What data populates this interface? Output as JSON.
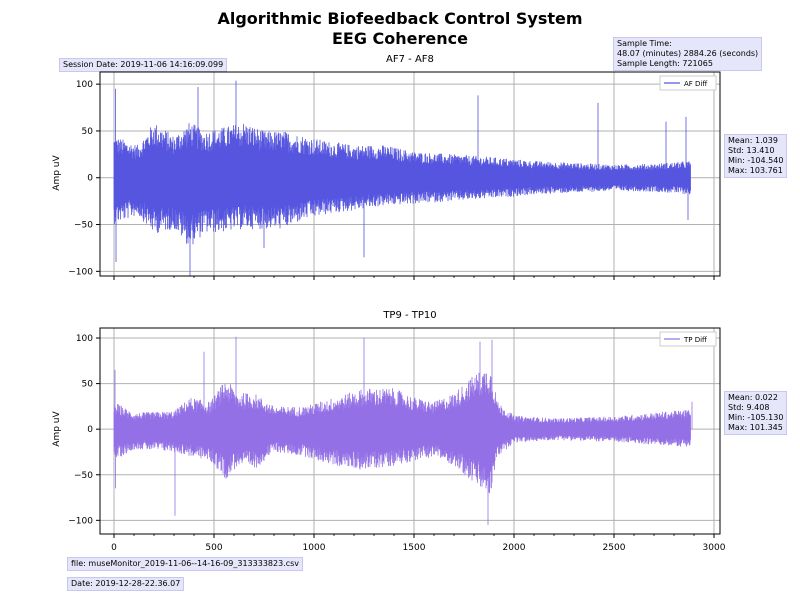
{
  "header": {
    "title_line1": "Algorithmic Biofeedback Control System",
    "title_line2": "EEG Coherence"
  },
  "session_date": "Session Date: 2019-11-06 14:16:09.099",
  "sample_info": {
    "line1": "Sample Time:",
    "line2": "48.07 (minutes) 2884.26 (seconds)",
    "line3": "Sample Length: 721065"
  },
  "footer": {
    "file": "file: museMonitor_2019-11-06--14-16-09_313333823.csv",
    "date": "Date: 2019-12-28-22.36.07"
  },
  "colors": {
    "af": "#5555e0",
    "tp": "#9370e6",
    "grid": "#b0b0b0",
    "box": "#e6e6fa"
  },
  "chart_data": [
    {
      "type": "line",
      "title": "AF7 - AF8",
      "ylabel": "Amp uV",
      "xlabel": "",
      "xlim": [
        -70,
        3030
      ],
      "ylim": [
        -105,
        113
      ],
      "xticks": [
        0,
        500,
        1000,
        1500,
        2000,
        2500,
        3000
      ],
      "yticks": [
        100,
        50,
        0,
        -50,
        -100
      ],
      "show_xtick_labels": false,
      "grid": true,
      "legend": "top-right",
      "series": [
        {
          "name": "AF Diff",
          "x_range": [
            0,
            2884
          ],
          "envelope": [
            [
              0,
              45,
              -50
            ],
            [
              60,
              40,
              -45
            ],
            [
              120,
              35,
              -40
            ],
            [
              200,
              60,
              -60
            ],
            [
              300,
              45,
              -55
            ],
            [
              380,
              60,
              -75
            ],
            [
              450,
              50,
              -60
            ],
            [
              560,
              55,
              -58
            ],
            [
              650,
              60,
              -55
            ],
            [
              750,
              50,
              -55
            ],
            [
              850,
              50,
              -55
            ],
            [
              950,
              45,
              -45
            ],
            [
              1050,
              40,
              -40
            ],
            [
              1200,
              35,
              -35
            ],
            [
              1350,
              35,
              -30
            ],
            [
              1500,
              28,
              -28
            ],
            [
              1700,
              25,
              -25
            ],
            [
              1900,
              22,
              -22
            ],
            [
              2100,
              18,
              -18
            ],
            [
              2300,
              16,
              -16
            ],
            [
              2500,
              14,
              -14
            ],
            [
              2700,
              15,
              -15
            ],
            [
              2884,
              18,
              -18
            ]
          ],
          "spikes": [
            [
              8,
              95
            ],
            [
              10,
              -90
            ],
            [
              380,
              -104.54
            ],
            [
              420,
              97
            ],
            [
              610,
              103.761
            ],
            [
              750,
              -75
            ],
            [
              1250,
              -85
            ],
            [
              1820,
              88
            ],
            [
              2420,
              80
            ],
            [
              2760,
              60
            ],
            [
              2860,
              65
            ],
            [
              2870,
              -45
            ]
          ]
        }
      ],
      "stats": {
        "mean": "Mean: 1.039",
        "std": "Std: 13.410",
        "min": "Min: -104.540",
        "max": "Max: 103.761"
      }
    },
    {
      "type": "line",
      "title": "TP9 - TP10",
      "ylabel": "Amp uV",
      "xlabel": "",
      "xlim": [
        -70,
        3030
      ],
      "ylim": [
        -115,
        111
      ],
      "xticks": [
        0,
        500,
        1000,
        1500,
        2000,
        2500,
        3000
      ],
      "yticks": [
        100,
        50,
        0,
        -50,
        -100
      ],
      "show_xtick_labels": true,
      "grid": true,
      "legend": "top-right",
      "series": [
        {
          "name": "TP Diff",
          "x_range": [
            0,
            2884
          ],
          "envelope": [
            [
              0,
              30,
              -35
            ],
            [
              100,
              18,
              -22
            ],
            [
              300,
              20,
              -25
            ],
            [
              380,
              35,
              -30
            ],
            [
              480,
              30,
              -35
            ],
            [
              560,
              55,
              -55
            ],
            [
              620,
              40,
              -40
            ],
            [
              700,
              40,
              -45
            ],
            [
              800,
              25,
              -25
            ],
            [
              950,
              25,
              -30
            ],
            [
              1100,
              35,
              -40
            ],
            [
              1250,
              45,
              -45
            ],
            [
              1400,
              45,
              -40
            ],
            [
              1500,
              35,
              -35
            ],
            [
              1600,
              30,
              -30
            ],
            [
              1700,
              40,
              -40
            ],
            [
              1800,
              60,
              -60
            ],
            [
              1880,
              70,
              -75
            ],
            [
              1920,
              30,
              -30
            ],
            [
              2000,
              15,
              -15
            ],
            [
              2200,
              12,
              -12
            ],
            [
              2500,
              14,
              -14
            ],
            [
              2884,
              22,
              -20
            ]
          ],
          "spikes": [
            [
              5,
              65
            ],
            [
              8,
              -65
            ],
            [
              305,
              -95
            ],
            [
              450,
              85
            ],
            [
              610,
              101.345
            ],
            [
              1250,
              100
            ],
            [
              1870,
              -105.13
            ],
            [
              1890,
              98
            ],
            [
              1830,
              96
            ],
            [
              2890,
              30
            ]
          ]
        }
      ],
      "stats": {
        "mean": "Mean: 0.022",
        "std": "Std: 9.408",
        "min": "Min: -105.130",
        "max": "Max: 101.345"
      }
    }
  ]
}
